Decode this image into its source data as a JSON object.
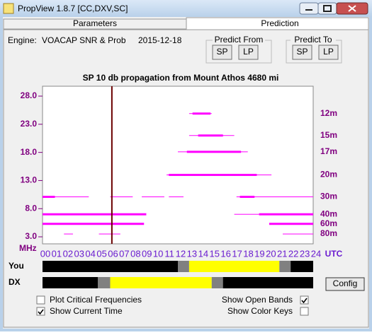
{
  "window": {
    "title": "PropView 1.8.7  [CC,DXV,SC]"
  },
  "tabs": [
    "Parameters",
    "Prediction"
  ],
  "engine": {
    "label": "Engine:",
    "name": "VOACAP SNR & Prob",
    "date": "2015-12-18"
  },
  "predict_from": {
    "title": "Predict From",
    "buttons": [
      "SP",
      "LP"
    ]
  },
  "predict_to": {
    "title": "Predict To",
    "buttons": [
      "SP",
      "LP"
    ]
  },
  "chart": {
    "title": "SP 10 db propagation from Mount Athos    4680 mi",
    "y_unit": "MHz",
    "x_unit": "UTC",
    "ylim": [
      1.75,
      29.76
    ],
    "xlim": [
      0,
      24
    ],
    "color": "#ff00ff",
    "current_time": 6.15,
    "yticks": [
      {
        "value": 3,
        "label": "3.0"
      },
      {
        "value": 8,
        "label": "8.0"
      },
      {
        "value": 13,
        "label": "13.0"
      },
      {
        "value": 18,
        "label": "18.0"
      },
      {
        "value": 23,
        "label": "23.0"
      },
      {
        "value": 28,
        "label": "28.0"
      }
    ],
    "xticks": [
      {
        "value": 0,
        "label": "00"
      },
      {
        "value": 1,
        "label": "01"
      },
      {
        "value": 2,
        "label": "02"
      },
      {
        "value": 3,
        "label": "03"
      },
      {
        "value": 4,
        "label": "04"
      },
      {
        "value": 5,
        "label": "05"
      },
      {
        "value": 6,
        "label": "06"
      },
      {
        "value": 7,
        "label": "07"
      },
      {
        "value": 8,
        "label": "08"
      },
      {
        "value": 9,
        "label": "09"
      },
      {
        "value": 10,
        "label": "10"
      },
      {
        "value": 11,
        "label": "11"
      },
      {
        "value": 12,
        "label": "12"
      },
      {
        "value": 13,
        "label": "13"
      },
      {
        "value": 14,
        "label": "14"
      },
      {
        "value": 15,
        "label": "15"
      },
      {
        "value": 16,
        "label": "16"
      },
      {
        "value": 17,
        "label": "17"
      },
      {
        "value": 18,
        "label": "18"
      },
      {
        "value": 19,
        "label": "19"
      },
      {
        "value": 20,
        "label": "20"
      },
      {
        "value": 21,
        "label": "21"
      },
      {
        "value": 22,
        "label": "22"
      },
      {
        "value": 23,
        "label": "23"
      },
      {
        "value": 24,
        "label": "24"
      }
    ],
    "bands": [
      {
        "name": "12m",
        "freq": 24.9,
        "weak": [
          [
            13,
            15
          ]
        ],
        "strong": [
          [
            13.3,
            14.9
          ]
        ]
      },
      {
        "name": "15m",
        "freq": 21,
        "weak": [
          [
            13,
            17
          ]
        ],
        "strong": [
          [
            13.8,
            16
          ]
        ]
      },
      {
        "name": "17m",
        "freq": 18.1,
        "weak": [
          [
            12,
            18.2
          ]
        ],
        "strong": [
          [
            12.8,
            17.6
          ]
        ]
      },
      {
        "name": "20m",
        "freq": 14,
        "weak": [
          [
            11,
            20.3
          ]
        ],
        "strong": [
          [
            11.2,
            19
          ]
        ]
      },
      {
        "name": "30m",
        "freq": 10.1,
        "weak": [
          [
            0,
            4.1
          ],
          [
            6,
            8
          ],
          [
            8.8,
            10.8
          ],
          [
            11.2,
            12.5
          ],
          [
            17.2,
            24
          ]
        ],
        "strong": [
          [
            0,
            1.1
          ],
          [
            17.5,
            18.8
          ]
        ]
      },
      {
        "name": "40m",
        "freq": 7,
        "weak": [
          [
            17,
            19.2
          ]
        ],
        "strong": [
          [
            0,
            9.2
          ],
          [
            19.2,
            24
          ]
        ]
      },
      {
        "name": "60m",
        "freq": 5.3,
        "weak": [
          [
            5,
            6.5
          ]
        ],
        "strong": [
          [
            0,
            9
          ],
          [
            20.1,
            24
          ]
        ]
      },
      {
        "name": "80m",
        "freq": 3.5,
        "weak": [
          [
            1.9,
            2.7
          ],
          [
            5,
            6.9
          ],
          [
            21.3,
            24
          ]
        ],
        "strong": []
      }
    ]
  },
  "timelines": [
    {
      "label": "You",
      "segments": [
        {
          "start": 0,
          "end": 12,
          "color": "#000000"
        },
        {
          "start": 12,
          "end": 13,
          "color": "#808080"
        },
        {
          "start": 13,
          "end": 21,
          "color": "#ffff00"
        },
        {
          "start": 21,
          "end": 22,
          "color": "#808080"
        },
        {
          "start": 22,
          "end": 24,
          "color": "#000000"
        }
      ]
    },
    {
      "label": "DX",
      "segments": [
        {
          "start": 0,
          "end": 4.9,
          "color": "#000000"
        },
        {
          "start": 4.9,
          "end": 6,
          "color": "#808080"
        },
        {
          "start": 6,
          "end": 15,
          "color": "#ffff00"
        },
        {
          "start": 15,
          "end": 16,
          "color": "#808080"
        },
        {
          "start": 16,
          "end": 24,
          "color": "#000000"
        }
      ]
    }
  ],
  "config_button": "Config",
  "options": [
    {
      "label": "Plot Critical Frequencies",
      "checked": false
    },
    {
      "label": "Show Current Time",
      "checked": true
    },
    {
      "label": "Show Open Bands",
      "checked": true
    },
    {
      "label": "Show Color Keys",
      "checked": false
    }
  ]
}
